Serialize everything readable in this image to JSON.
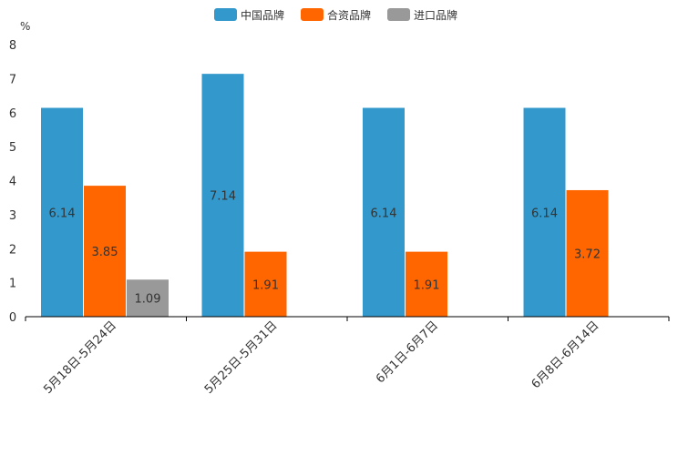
{
  "chart_data": {
    "type": "bar",
    "title": "",
    "xlabel": "",
    "ylabel": "%",
    "ylim": [
      0,
      8
    ],
    "yticks": [
      0,
      1,
      2,
      3,
      4,
      5,
      6,
      7,
      8
    ],
    "categories": [
      "5月18日-5月24日",
      "5月25日-5月31日",
      "6月1日-6月7日",
      "6月8日-6月14日"
    ],
    "series": [
      {
        "name": "中国品牌",
        "color": "#3399cc",
        "values": [
          6.14,
          7.14,
          6.14,
          6.14
        ]
      },
      {
        "name": "合资品牌",
        "color": "#ff6600",
        "values": [
          3.85,
          1.91,
          1.91,
          3.72
        ]
      },
      {
        "name": "进口品牌",
        "color": "#999999",
        "values": [
          1.09,
          null,
          null,
          null
        ]
      }
    ],
    "legend_position": "top-center",
    "grid": false
  }
}
